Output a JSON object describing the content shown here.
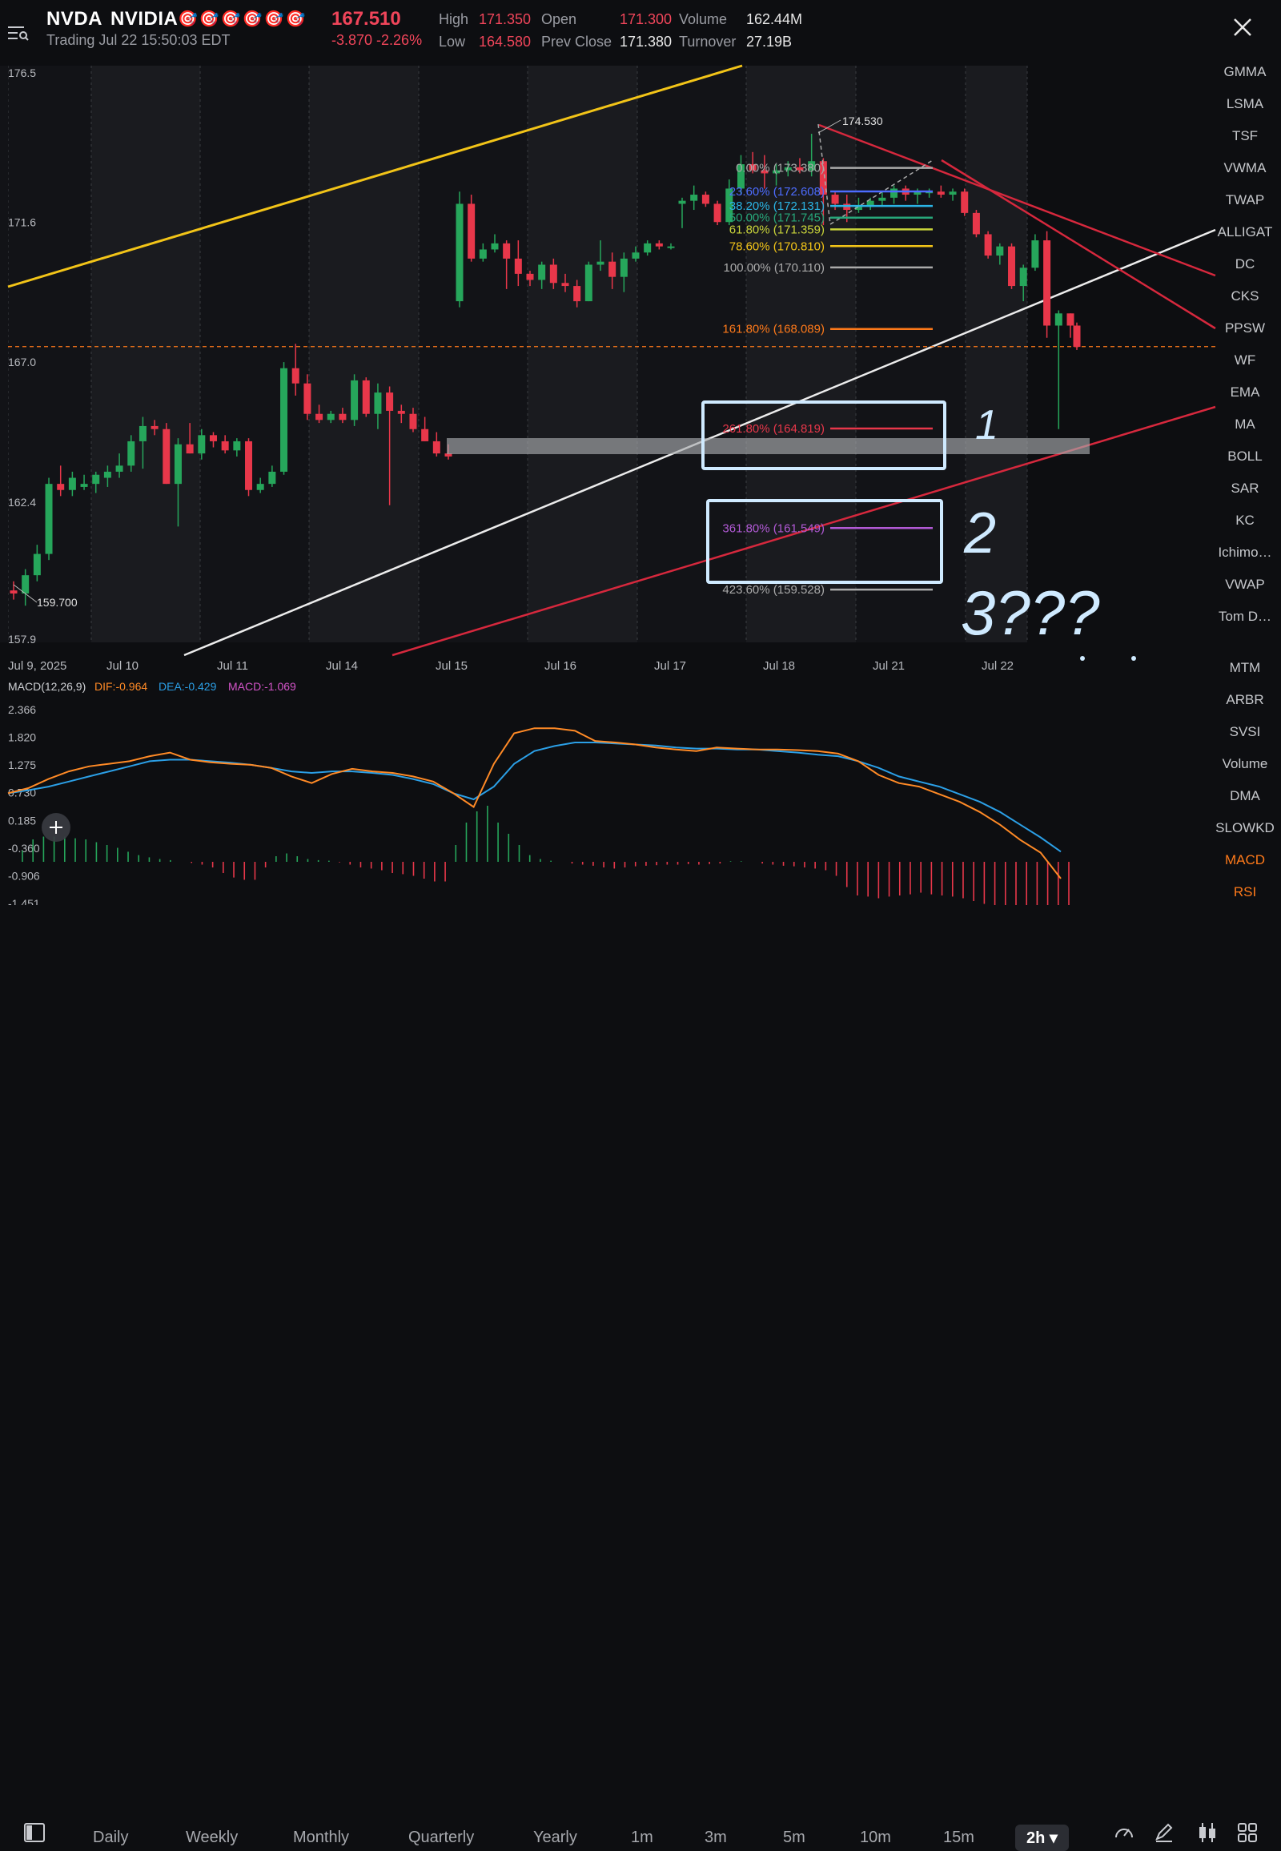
{
  "header": {
    "symbol": "NVDA",
    "company": "NVIDIA",
    "target_icons": "🎯🎯🎯🎯🎯🎯",
    "price": "167.510",
    "change": "-3.870 -2.26%",
    "status": "Trading Jul 22 15:50:03 EDT",
    "high_label": "High",
    "high": "171.350",
    "low_label": "Low",
    "low": "164.580",
    "open_label": "Open",
    "open": "171.300",
    "prev_close_label": "Prev Close",
    "prev_close": "171.380",
    "volume_label": "Volume",
    "volume": "162.44M",
    "turnover_label": "Turnover",
    "turnover": "27.19B"
  },
  "chart_data": [
    {
      "type": "candlestick",
      "title": "",
      "y_ticks": [
        "176.5",
        "171.6",
        "167.0",
        "162.4",
        "157.9"
      ],
      "x_ticks": [
        "Jul 9, 2025",
        "Jul 10",
        "Jul 11",
        "Jul 14",
        "Jul 15",
        "Jul 16",
        "Jul 17",
        "Jul 18",
        "Jul 21",
        "Jul 22"
      ],
      "annotations": {
        "high_marker": "174.530",
        "low_marker": "159.700",
        "current_price": 167.51,
        "fibonacci": [
          {
            "label": "0.00% (173.380)",
            "value": 173.38,
            "color": "#aaaaaa"
          },
          {
            "label": "23.60% (172.608)",
            "value": 172.608,
            "color": "#4d6cff"
          },
          {
            "label": "38.20% (172.131)",
            "value": 172.131,
            "color": "#2bb5e6"
          },
          {
            "label": "50.00% (171.745)",
            "value": 171.745,
            "color": "#27a77a"
          },
          {
            "label": "61.80% (171.359)",
            "value": 171.359,
            "color": "#c9d43a"
          },
          {
            "label": "78.60% (170.810)",
            "value": 170.81,
            "color": "#f2c418"
          },
          {
            "label": "100.00% (170.110)",
            "value": 170.11,
            "color": "#aaaaaa"
          },
          {
            "label": "161.80% (168.089)",
            "value": 168.089,
            "color": "#ff7a1a"
          },
          {
            "label": "261.80% (164.819)",
            "value": 164.819,
            "color": "#e8374a"
          },
          {
            "label": "361.80% (161.549)",
            "value": 161.549,
            "color": "#b25ad6"
          },
          {
            "label": "423.60% (159.528)",
            "value": 159.528,
            "color": "#aaaaaa"
          }
        ],
        "handwritten": [
          "1",
          "2",
          "3???"
        ]
      },
      "candles_ohlc_approx": [
        [
          159.5,
          159.8,
          159.2,
          159.4
        ],
        [
          159.4,
          160.2,
          159.0,
          160.0
        ],
        [
          160.0,
          161.0,
          159.8,
          160.7
        ],
        [
          160.7,
          163.2,
          160.5,
          163.0
        ],
        [
          163.0,
          163.6,
          162.6,
          162.8
        ],
        [
          162.8,
          163.4,
          162.6,
          163.2
        ],
        [
          162.9,
          163.3,
          162.8,
          163.0
        ],
        [
          163.0,
          163.4,
          162.7,
          163.3
        ],
        [
          163.2,
          163.6,
          162.9,
          163.4
        ],
        [
          163.4,
          164.0,
          163.2,
          163.6
        ],
        [
          163.6,
          164.6,
          163.4,
          164.4
        ],
        [
          164.4,
          165.2,
          163.5,
          164.9
        ],
        [
          164.9,
          165.1,
          164.6,
          164.8
        ],
        [
          164.8,
          165.0,
          163.0,
          163.0
        ],
        [
          163.0,
          164.5,
          161.6,
          164.3
        ],
        [
          164.3,
          165.0,
          164.0,
          164.0
        ],
        [
          164.0,
          164.8,
          163.8,
          164.6
        ],
        [
          164.6,
          164.7,
          164.2,
          164.4
        ],
        [
          164.4,
          164.6,
          164.0,
          164.1
        ],
        [
          164.1,
          164.5,
          163.9,
          164.4
        ],
        [
          164.4,
          164.5,
          162.6,
          162.8
        ],
        [
          162.8,
          163.2,
          162.7,
          163.0
        ],
        [
          163.0,
          163.6,
          162.9,
          163.4
        ],
        [
          163.4,
          167.0,
          163.3,
          166.8
        ],
        [
          166.8,
          167.6,
          165.9,
          166.3
        ],
        [
          166.3,
          166.6,
          165.1,
          165.3
        ],
        [
          165.3,
          165.6,
          165.0,
          165.1
        ],
        [
          165.1,
          165.4,
          165.0,
          165.3
        ],
        [
          165.3,
          165.5,
          165.0,
          165.1
        ],
        [
          165.1,
          166.6,
          164.9,
          166.4
        ],
        [
          166.4,
          166.5,
          165.2,
          165.3
        ],
        [
          165.3,
          166.3,
          164.8,
          166.0
        ],
        [
          166.0,
          166.2,
          162.3,
          165.4
        ],
        [
          165.4,
          165.6,
          165.0,
          165.3
        ],
        [
          165.3,
          165.5,
          164.7,
          164.8
        ],
        [
          164.8,
          165.2,
          164.4,
          164.4
        ],
        [
          164.4,
          164.7,
          163.9,
          164.0
        ],
        [
          164.0,
          164.3,
          163.8,
          163.9
        ],
        [
          169.0,
          172.6,
          168.8,
          172.2
        ],
        [
          172.2,
          172.5,
          170.3,
          170.4
        ],
        [
          170.4,
          170.9,
          170.3,
          170.7
        ],
        [
          170.7,
          171.2,
          170.6,
          170.9
        ],
        [
          170.9,
          171.0,
          169.4,
          170.4
        ],
        [
          170.4,
          171.0,
          169.5,
          169.9
        ],
        [
          169.9,
          170.0,
          169.5,
          169.7
        ],
        [
          169.7,
          170.3,
          169.4,
          170.2
        ],
        [
          170.2,
          170.4,
          169.4,
          169.6
        ],
        [
          169.6,
          169.9,
          169.3,
          169.5
        ],
        [
          169.5,
          169.7,
          168.8,
          169.0
        ],
        [
          169.0,
          170.3,
          169.0,
          170.2
        ],
        [
          170.2,
          171.0,
          170.0,
          170.3
        ],
        [
          170.3,
          170.6,
          169.4,
          169.8
        ],
        [
          169.8,
          170.6,
          169.3,
          170.4
        ],
        [
          170.4,
          170.8,
          170.3,
          170.6
        ],
        [
          170.6,
          171.0,
          170.5,
          170.9
        ],
        [
          170.9,
          171.0,
          170.7,
          170.8
        ],
        [
          170.8,
          170.9,
          170.7,
          170.8
        ],
        [
          172.2,
          172.4,
          171.4,
          172.3
        ],
        [
          172.3,
          172.8,
          172.0,
          172.5
        ],
        [
          172.5,
          172.6,
          172.1,
          172.2
        ],
        [
          172.2,
          172.3,
          171.5,
          171.6
        ],
        [
          171.6,
          173.0,
          171.5,
          172.7
        ],
        [
          172.7,
          173.8,
          172.5,
          173.5
        ],
        [
          173.5,
          173.9,
          173.2,
          173.3
        ],
        [
          173.3,
          173.8,
          172.7,
          173.2
        ],
        [
          173.2,
          173.5,
          172.8,
          173.3
        ],
        [
          173.3,
          173.6,
          173.1,
          173.4
        ],
        [
          173.4,
          173.7,
          173.2,
          173.3
        ],
        [
          173.3,
          174.5,
          173.1,
          173.6
        ],
        [
          173.6,
          173.7,
          171.5,
          172.5
        ],
        [
          172.5,
          172.6,
          172.0,
          172.2
        ],
        [
          172.2,
          172.5,
          171.6,
          172.0
        ],
        [
          172.0,
          172.4,
          171.9,
          172.1
        ],
        [
          172.1,
          172.4,
          172.0,
          172.3
        ],
        [
          172.3,
          172.6,
          172.1,
          172.4
        ],
        [
          172.4,
          172.8,
          172.2,
          172.7
        ],
        [
          172.7,
          172.8,
          172.3,
          172.5
        ],
        [
          172.5,
          172.7,
          172.2,
          172.6
        ],
        [
          172.6,
          172.7,
          172.4,
          172.6
        ],
        [
          172.6,
          172.8,
          172.4,
          172.5
        ],
        [
          172.5,
          172.7,
          172.3,
          172.6
        ],
        [
          172.6,
          172.7,
          171.8,
          171.9
        ],
        [
          171.9,
          172.0,
          171.1,
          171.2
        ],
        [
          171.2,
          171.3,
          170.4,
          170.5
        ],
        [
          170.5,
          170.9,
          170.2,
          170.8
        ],
        [
          170.8,
          170.9,
          169.4,
          169.5
        ],
        [
          169.5,
          170.2,
          169.0,
          170.1
        ],
        [
          170.1,
          171.2,
          170.0,
          171.0
        ],
        [
          171.0,
          171.3,
          167.8,
          168.2
        ],
        [
          168.2,
          168.7,
          164.8,
          168.6
        ],
        [
          168.6,
          168.6,
          167.8,
          168.2
        ],
        [
          168.2,
          168.3,
          167.4,
          167.5
        ]
      ]
    },
    {
      "type": "line",
      "title": "MACD(12,26,9)",
      "dif_label": "DIF:-0.964",
      "dea_label": "DEA:-0.429",
      "macd_label": "MACD:-1.069",
      "y_ticks": [
        "2.366",
        "1.820",
        "1.275",
        "0.730",
        "0.185",
        "-0.360",
        "-0.906",
        "-1.451"
      ],
      "dif": [
        0.72,
        0.82,
        1.0,
        1.15,
        1.25,
        1.3,
        1.35,
        1.45,
        1.52,
        1.38,
        1.33,
        1.3,
        1.28,
        1.22,
        1.05,
        0.92,
        1.1,
        1.2,
        1.15,
        1.12,
        1.05,
        0.95,
        0.72,
        0.45,
        1.3,
        1.9,
        2.0,
        2.0,
        1.95,
        1.75,
        1.72,
        1.68,
        1.62,
        1.58,
        1.55,
        1.62,
        1.6,
        1.58,
        1.58,
        1.57,
        1.55,
        1.5,
        1.35,
        1.08,
        0.92,
        0.85,
        0.7,
        0.55,
        0.35,
        0.1,
        -0.2,
        -0.45,
        -0.96
      ],
      "dea": [
        0.72,
        0.78,
        0.85,
        0.95,
        1.05,
        1.15,
        1.25,
        1.35,
        1.38,
        1.38,
        1.35,
        1.32,
        1.28,
        1.22,
        1.15,
        1.12,
        1.15,
        1.15,
        1.12,
        1.08,
        1.0,
        0.9,
        0.72,
        0.6,
        0.85,
        1.3,
        1.55,
        1.65,
        1.72,
        1.72,
        1.7,
        1.68,
        1.66,
        1.62,
        1.6,
        1.6,
        1.58,
        1.58,
        1.55,
        1.52,
        1.48,
        1.45,
        1.35,
        1.22,
        1.05,
        0.95,
        0.85,
        0.7,
        0.55,
        0.35,
        0.1,
        -0.15,
        -0.43
      ],
      "histogram": [
        0.2,
        0.4,
        0.45,
        0.45,
        0.45,
        0.42,
        0.4,
        0.35,
        0.3,
        0.25,
        0.18,
        0.12,
        0.08,
        0.05,
        0.03,
        0.0,
        -0.02,
        -0.05,
        -0.1,
        -0.2,
        -0.28,
        -0.32,
        -0.32,
        -0.1,
        0.1,
        0.15,
        0.1,
        0.05,
        0.03,
        0.02,
        -0.01,
        -0.05,
        -0.1,
        -0.12,
        -0.15,
        -0.2,
        -0.22,
        -0.25,
        -0.3,
        -0.35,
        -0.35,
        0.3,
        0.7,
        0.9,
        1.0,
        0.7,
        0.5,
        0.3,
        0.12,
        0.05,
        0.02,
        0.0,
        -0.03,
        -0.05,
        -0.07,
        -0.1,
        -0.12,
        -0.1,
        -0.08,
        -0.07,
        -0.06,
        -0.05,
        -0.05,
        -0.04,
        -0.05,
        -0.04,
        -0.03,
        0.01,
        0.01,
        0.0,
        -0.03,
        -0.05,
        -0.07,
        -0.08,
        -0.1,
        -0.12,
        -0.15,
        -0.25,
        -0.45,
        -0.6,
        -0.62,
        -0.65,
        -0.62,
        -0.6,
        -0.58,
        -0.55,
        -0.58,
        -0.6,
        -0.62,
        -0.65,
        -0.7,
        -0.75,
        -0.8,
        -0.85,
        -0.88,
        -0.9,
        -0.92,
        -0.95,
        -1.0,
        -1.069
      ]
    }
  ],
  "sidebar": {
    "items": [
      "GMMA",
      "LSMA",
      "TSF",
      "VWMA",
      "TWAP",
      "ALLIGAT",
      "DC",
      "CKS",
      "PPSW",
      "WF",
      "EMA",
      "MA",
      "BOLL",
      "SAR",
      "KC",
      "Ichimo…",
      "VWAP",
      "Tom D…",
      "MTM",
      "ARBR",
      "SVSI",
      "Volume",
      "DMA",
      "SLOWKD",
      "MACD",
      "RSI"
    ],
    "active": [
      "MACD",
      "RSI"
    ]
  },
  "periods": {
    "items": [
      "Daily",
      "Weekly",
      "Monthly",
      "Quarterly",
      "Yearly",
      "1m",
      "3m",
      "5m",
      "10m",
      "15m",
      "2h ▾"
    ],
    "active": "2h ▾"
  },
  "colors": {
    "up": "#26a65b",
    "down": "#e8374a",
    "accent": "#ff7a1a",
    "yellow_trend": "#f2c418",
    "white_trend": "#e8e8e8",
    "red_trend": "#d6283d",
    "annotation_box": "#cfeaff"
  }
}
